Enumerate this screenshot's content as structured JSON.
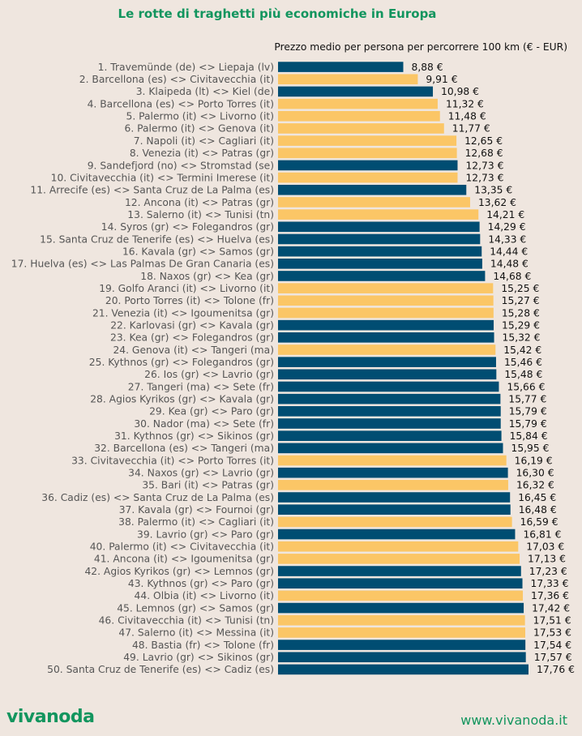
{
  "brand": {
    "logo": "vivanoda",
    "url": "www.vivanoda.it"
  },
  "colors": {
    "navy": "#004d72",
    "yellow": "#fbc666",
    "accent": "#12955e",
    "background": "#efe6df"
  },
  "chart_data": {
    "type": "bar",
    "orientation": "horizontal",
    "title": "Le rotte di traghetti più economiche in Europa",
    "subtitle": "Prezzo medio per persona per percorrere 100 km (€ - EUR)",
    "value_suffix": " €",
    "xlim": [
      0,
      18.5
    ],
    "grid": false,
    "categories": [
      "1. Travemünde (de) <> Liepaja (lv)",
      "2. Barcellona (es) <> Civitavecchia (it)",
      "3. Klaipeda (lt) <> Kiel (de)",
      "4. Barcellona (es) <> Porto Torres (it)",
      "5. Palermo (it) <> Livorno (it)",
      "6. Palermo (it) <> Genova (it)",
      "7. Napoli (it) <> Cagliari (it)",
      "8. Venezia (it) <> Patras (gr)",
      "9. Sandefjord (no) <> Stromstad (se)",
      "10. Civitavecchia (it) <> Termini Imerese (it)",
      "11. Arrecife (es) <> Santa Cruz de La Palma (es)",
      "12. Ancona (it) <> Patras (gr)",
      "13. Salerno (it) <> Tunisi (tn)",
      "14. Syros (gr) <> Folegandros (gr)",
      "15. Santa Cruz de Tenerife (es) <> Huelva (es)",
      "16. Kavala (gr) <> Samos (gr)",
      "17. Huelva (es) <> Las Palmas De Gran Canaria (es)",
      "18. Naxos (gr) <> Kea (gr)",
      "19. Golfo Aranci (it) <> Livorno (it)",
      "20. Porto Torres (it) <> Tolone (fr)",
      "21. Venezia (it) <> Igoumenitsa (gr)",
      "22. Karlovasi (gr) <> Kavala (gr)",
      "23. Kea (gr) <> Folegandros (gr)",
      "24. Genova (it) <> Tangeri (ma)",
      "25. Kythnos (gr) <> Folegandros (gr)",
      "26. Ios (gr) <> Lavrio (gr)",
      "27. Tangeri (ma) <> Sete (fr)",
      "28. Agios Kyrikos (gr) <> Kavala (gr)",
      "29. Kea (gr) <> Paro (gr)",
      "30. Nador (ma) <> Sete (fr)",
      "31. Kythnos (gr) <> Sikinos (gr)",
      "32. Barcellona (es) <> Tangeri (ma)",
      "33. Civitavecchia (it) <> Porto Torres (it)",
      "34. Naxos (gr) <> Lavrio (gr)",
      "35. Bari (it) <> Patras (gr)",
      "36. Cadiz (es) <> Santa Cruz de La Palma (es)",
      "37. Kavala (gr) <> Fournoi (gr)",
      "38. Palermo (it) <> Cagliari (it)",
      "39. Lavrio (gr) <> Paro (gr)",
      "40. Palermo (it) <> Civitavecchia (it)",
      "41. Ancona (it) <> Igoumenitsa (gr)",
      "42. Agios Kyrikos (gr) <> Lemnos (gr)",
      "43. Kythnos (gr) <> Paro (gr)",
      "44. Olbia (it) <> Livorno (it)",
      "45. Lemnos (gr) <> Samos (gr)",
      "46. Civitavecchia (it) <> Tunisi (tn)",
      "47. Salerno (it) <> Messina (it)",
      "48. Bastia (fr) <> Tolone (fr)",
      "49. Lavrio (gr) <> Sikinos (gr)",
      "50. Santa Cruz de Tenerife (es) <> Cadiz (es)"
    ],
    "values": [
      8.88,
      9.91,
      10.98,
      11.32,
      11.48,
      11.77,
      12.65,
      12.68,
      12.73,
      12.73,
      13.35,
      13.62,
      14.21,
      14.29,
      14.33,
      14.44,
      14.48,
      14.68,
      15.25,
      15.27,
      15.28,
      15.29,
      15.32,
      15.42,
      15.46,
      15.48,
      15.66,
      15.77,
      15.79,
      15.79,
      15.84,
      15.95,
      16.19,
      16.3,
      16.32,
      16.45,
      16.48,
      16.59,
      16.81,
      17.03,
      17.13,
      17.23,
      17.33,
      17.36,
      17.42,
      17.51,
      17.53,
      17.54,
      17.57,
      17.76
    ],
    "bar_colors": [
      "navy",
      "yellow",
      "navy",
      "yellow",
      "yellow",
      "yellow",
      "yellow",
      "yellow",
      "navy",
      "yellow",
      "navy",
      "yellow",
      "yellow",
      "navy",
      "navy",
      "navy",
      "navy",
      "navy",
      "yellow",
      "yellow",
      "yellow",
      "navy",
      "navy",
      "yellow",
      "navy",
      "navy",
      "navy",
      "navy",
      "navy",
      "navy",
      "navy",
      "navy",
      "yellow",
      "navy",
      "yellow",
      "navy",
      "navy",
      "yellow",
      "navy",
      "yellow",
      "yellow",
      "navy",
      "navy",
      "yellow",
      "navy",
      "yellow",
      "yellow",
      "navy",
      "navy",
      "navy"
    ]
  }
}
